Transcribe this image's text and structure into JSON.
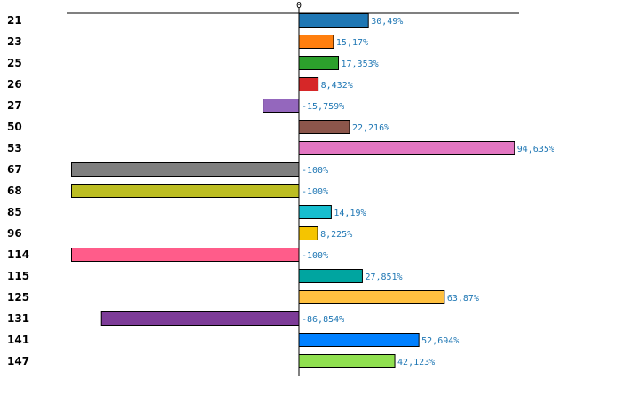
{
  "chart_data": {
    "type": "bar",
    "orientation": "horizontal",
    "title": "",
    "xlabel": "",
    "ylabel": "",
    "xlim": [
      -100,
      95
    ],
    "x_tick_label": "0",
    "highlight_category": "26",
    "categories": [
      "21",
      "23",
      "25",
      "26",
      "27",
      "50",
      "53",
      "67",
      "68",
      "85",
      "96",
      "114",
      "115",
      "125",
      "131",
      "141",
      "147"
    ],
    "values": [
      30.49,
      15.17,
      17.353,
      8.432,
      -15.759,
      22.216,
      94.635,
      -100,
      -100,
      14.19,
      8.225,
      -100,
      27.851,
      63.87,
      -86.854,
      52.694,
      42.123
    ],
    "value_labels": [
      "30,49%",
      "15,17%",
      "17,353%",
      "8,432%",
      "-15,759%",
      "22,216%",
      "94,635%",
      "-100%",
      "-100%",
      "14,19%",
      "8,225%",
      "-100%",
      "27,851%",
      "63,87%",
      "-86,854%",
      "52,694%",
      "42,123%"
    ],
    "colors": [
      "#1f77b4",
      "#ff7f0e",
      "#2ca02c",
      "#d62728",
      "#9467bd",
      "#8c564b",
      "#e377c2",
      "#7f7f7f",
      "#bcbd22",
      "#17becf",
      "#f5c400",
      "#ff5c8a",
      "#00a5a0",
      "#ffc040",
      "#7d3c98",
      "#0080ff",
      "#90e050"
    ],
    "label_color": "#1f77b4",
    "highlight_color": "#cc0000",
    "category_color": "#000000"
  }
}
